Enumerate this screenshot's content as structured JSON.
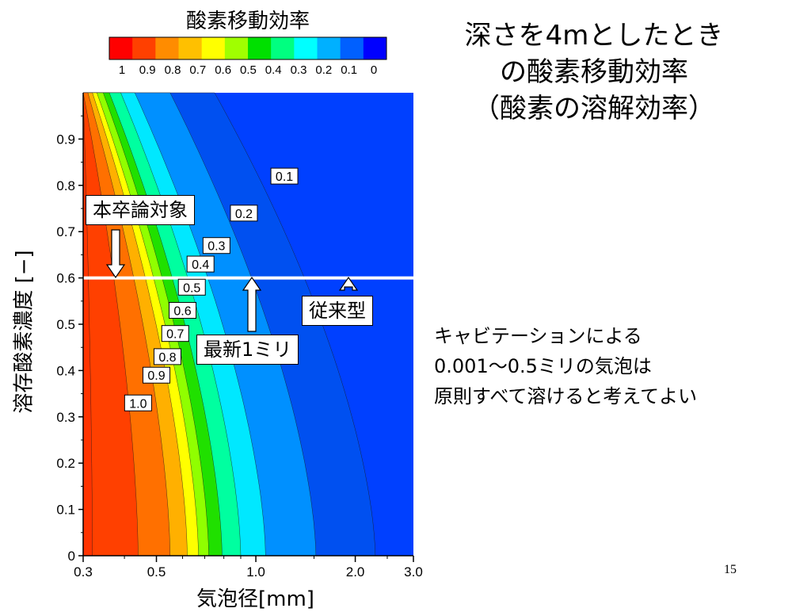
{
  "slide": {
    "title_lines": [
      "深さを4mとしたとき",
      "の酸素移動効率",
      "（酸素の溶解効率）"
    ],
    "note_lines": [
      "キャビテーションによる",
      "0.001〜0.5ミリの気泡は",
      "原則すべて溶けると考えてよい"
    ],
    "page_number": "15"
  },
  "colorbar": {
    "title": "酸素移動効率",
    "tick_labels": [
      "1",
      "0.9",
      "0.8",
      "0.7",
      "0.6",
      "0.5",
      "0.4",
      "0.3",
      "0.2",
      "0.1",
      "0"
    ],
    "colors": [
      "#ff0000",
      "#ff4000",
      "#ff8c00",
      "#ffc000",
      "#ffff00",
      "#a0ff00",
      "#00e000",
      "#00ff80",
      "#00ffff",
      "#00b0ff",
      "#0060ff",
      "#0000ff"
    ]
  },
  "annotations": {
    "box_target": "本卒論対象",
    "box_new": "最新1ミリ",
    "box_conventional": "従来型"
  },
  "chart_data": {
    "type": "contour",
    "xlabel": "気泡径[mm]",
    "ylabel": "溶存酸素濃度 [−]",
    "x_scale": "log",
    "xlim": [
      0.3,
      3.0
    ],
    "ylim": [
      0,
      1.0
    ],
    "x_tick_labels": [
      {
        "value": 0.3,
        "label": "0.3"
      },
      {
        "value": 0.5,
        "label": "0.5"
      },
      {
        "value": 1.0,
        "label": "1.0"
      },
      {
        "value": 2.0,
        "label": "2.0"
      },
      {
        "value": 3.0,
        "label": "3.0"
      }
    ],
    "y_tick_labels": [
      "0",
      "0.1",
      "0.2",
      "0.3",
      "0.4",
      "0.5",
      "0.6",
      "0.7",
      "0.8",
      "0.9"
    ],
    "y_ticks": [
      0,
      0.1,
      0.2,
      0.3,
      0.4,
      0.5,
      0.6,
      0.7,
      0.8,
      0.9
    ],
    "reference_line_y": 0.6,
    "contours": [
      {
        "level": "1.0",
        "x_at_y0": 0.32,
        "x_at_y1": 0.3
      },
      {
        "level": "0.9",
        "x_at_y0": 0.44,
        "x_at_y1": 0.3
      },
      {
        "level": "0.8",
        "x_at_y0": 0.55,
        "x_at_y1": 0.31
      },
      {
        "level": "0.7",
        "x_at_y0": 0.62,
        "x_at_y1": 0.32
      },
      {
        "level": "0.6",
        "x_at_y0": 0.67,
        "x_at_y1": 0.33
      },
      {
        "level": "0.5",
        "x_at_y0": 0.72,
        "x_at_y1": 0.345
      },
      {
        "level": "0.4",
        "x_at_y0": 0.79,
        "x_at_y1": 0.36
      },
      {
        "level": "0.3",
        "x_at_y0": 0.9,
        "x_at_y1": 0.39
      },
      {
        "level": "0.2",
        "x_at_y0": 1.07,
        "x_at_y1": 0.43
      },
      {
        "level": "0.1",
        "x_at_y0": 1.52,
        "x_at_y1": 0.55
      },
      {
        "level": "0.05",
        "x_at_y0": 2.3,
        "x_at_y1": 0.75
      }
    ],
    "level_labels": [
      {
        "text": "0.1",
        "x": 1.22,
        "y": 0.82
      },
      {
        "text": "0.2",
        "x": 0.92,
        "y": 0.74
      },
      {
        "text": "0.3",
        "x": 0.76,
        "y": 0.67
      },
      {
        "text": "0.4",
        "x": 0.68,
        "y": 0.63
      },
      {
        "text": "0.5",
        "x": 0.64,
        "y": 0.58
      },
      {
        "text": "0.6",
        "x": 0.6,
        "y": 0.53
      },
      {
        "text": "0.7",
        "x": 0.57,
        "y": 0.48
      },
      {
        "text": "0.8",
        "x": 0.54,
        "y": 0.43
      },
      {
        "text": "0.9",
        "x": 0.5,
        "y": 0.39
      },
      {
        "text": "1.0",
        "x": 0.44,
        "y": 0.33
      }
    ]
  }
}
